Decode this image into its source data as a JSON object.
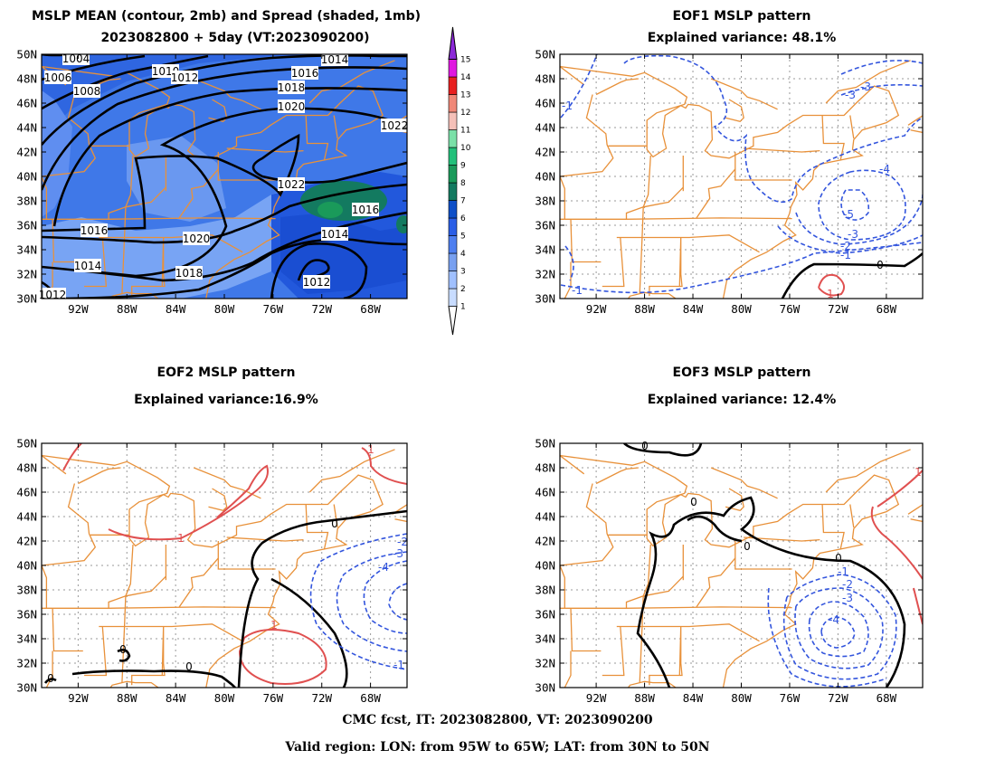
{
  "panels": [
    {
      "title1": "MSLP MEAN (contour, 2mb) and Spread (shaded, 1mb)",
      "title2": "2023082800 + 5day (VT:2023090200)"
    },
    {
      "title1": "EOF1 MSLP pattern",
      "title2": "Explained variance: 48.1%"
    },
    {
      "title1": "EOF2 MSLP pattern",
      "title2": "Explained variance:16.9%"
    },
    {
      "title1": "EOF3 MSLP pattern",
      "title2": "Explained variance: 12.4%"
    }
  ],
  "axes": {
    "lat_labels": [
      "30N",
      "32N",
      "34N",
      "36N",
      "38N",
      "40N",
      "42N",
      "44N",
      "46N",
      "48N",
      "50N"
    ],
    "lon_labels": [
      "92W",
      "88W",
      "84W",
      "80W",
      "76W",
      "72W",
      "68W"
    ]
  },
  "colorbar": {
    "labels": [
      "1",
      "2",
      "3",
      "4",
      "5",
      "6",
      "7",
      "8",
      "9",
      "10",
      "11",
      "12",
      "13",
      "14",
      "15"
    ],
    "colors": [
      "#c8dcff",
      "#a0c0ff",
      "#78a0f0",
      "#4e7ff0",
      "#2a5ee6",
      "#0e4fc8",
      "#137a60",
      "#1a9a5a",
      "#22c07a",
      "#7be0a8",
      "#f5c0b8",
      "#f08878",
      "#e82020",
      "#e018e0",
      "#8c28d8"
    ]
  },
  "panel1_isobars": [
    "1004",
    "1006",
    "1008",
    "1010",
    "1012",
    "1014",
    "1016",
    "1018",
    "1020",
    "1022",
    "1022",
    "1016",
    "1014",
    "1012",
    "1016",
    "1014",
    "1018",
    "1020",
    "1012"
  ],
  "eof1_labels": [
    "-3",
    "-3",
    "-1",
    "-4",
    "-5",
    "-3",
    "-2",
    "-1",
    "0",
    "1",
    "-1"
  ],
  "eof2_labels": [
    "1",
    "1",
    "0",
    "-2",
    "-3",
    "-4",
    "1",
    "0",
    "0",
    "0",
    "-1"
  ],
  "eof3_labels": [
    "0",
    "0",
    "0",
    "0",
    "-1",
    "-2",
    "-3",
    "-4",
    "1"
  ],
  "footer": {
    "line1": "CMC fcst, IT: 2023082800, VT: 2023090200",
    "line2": "Valid region: LON: from 95W to 65W; LAT: from 30N to 50N"
  }
}
